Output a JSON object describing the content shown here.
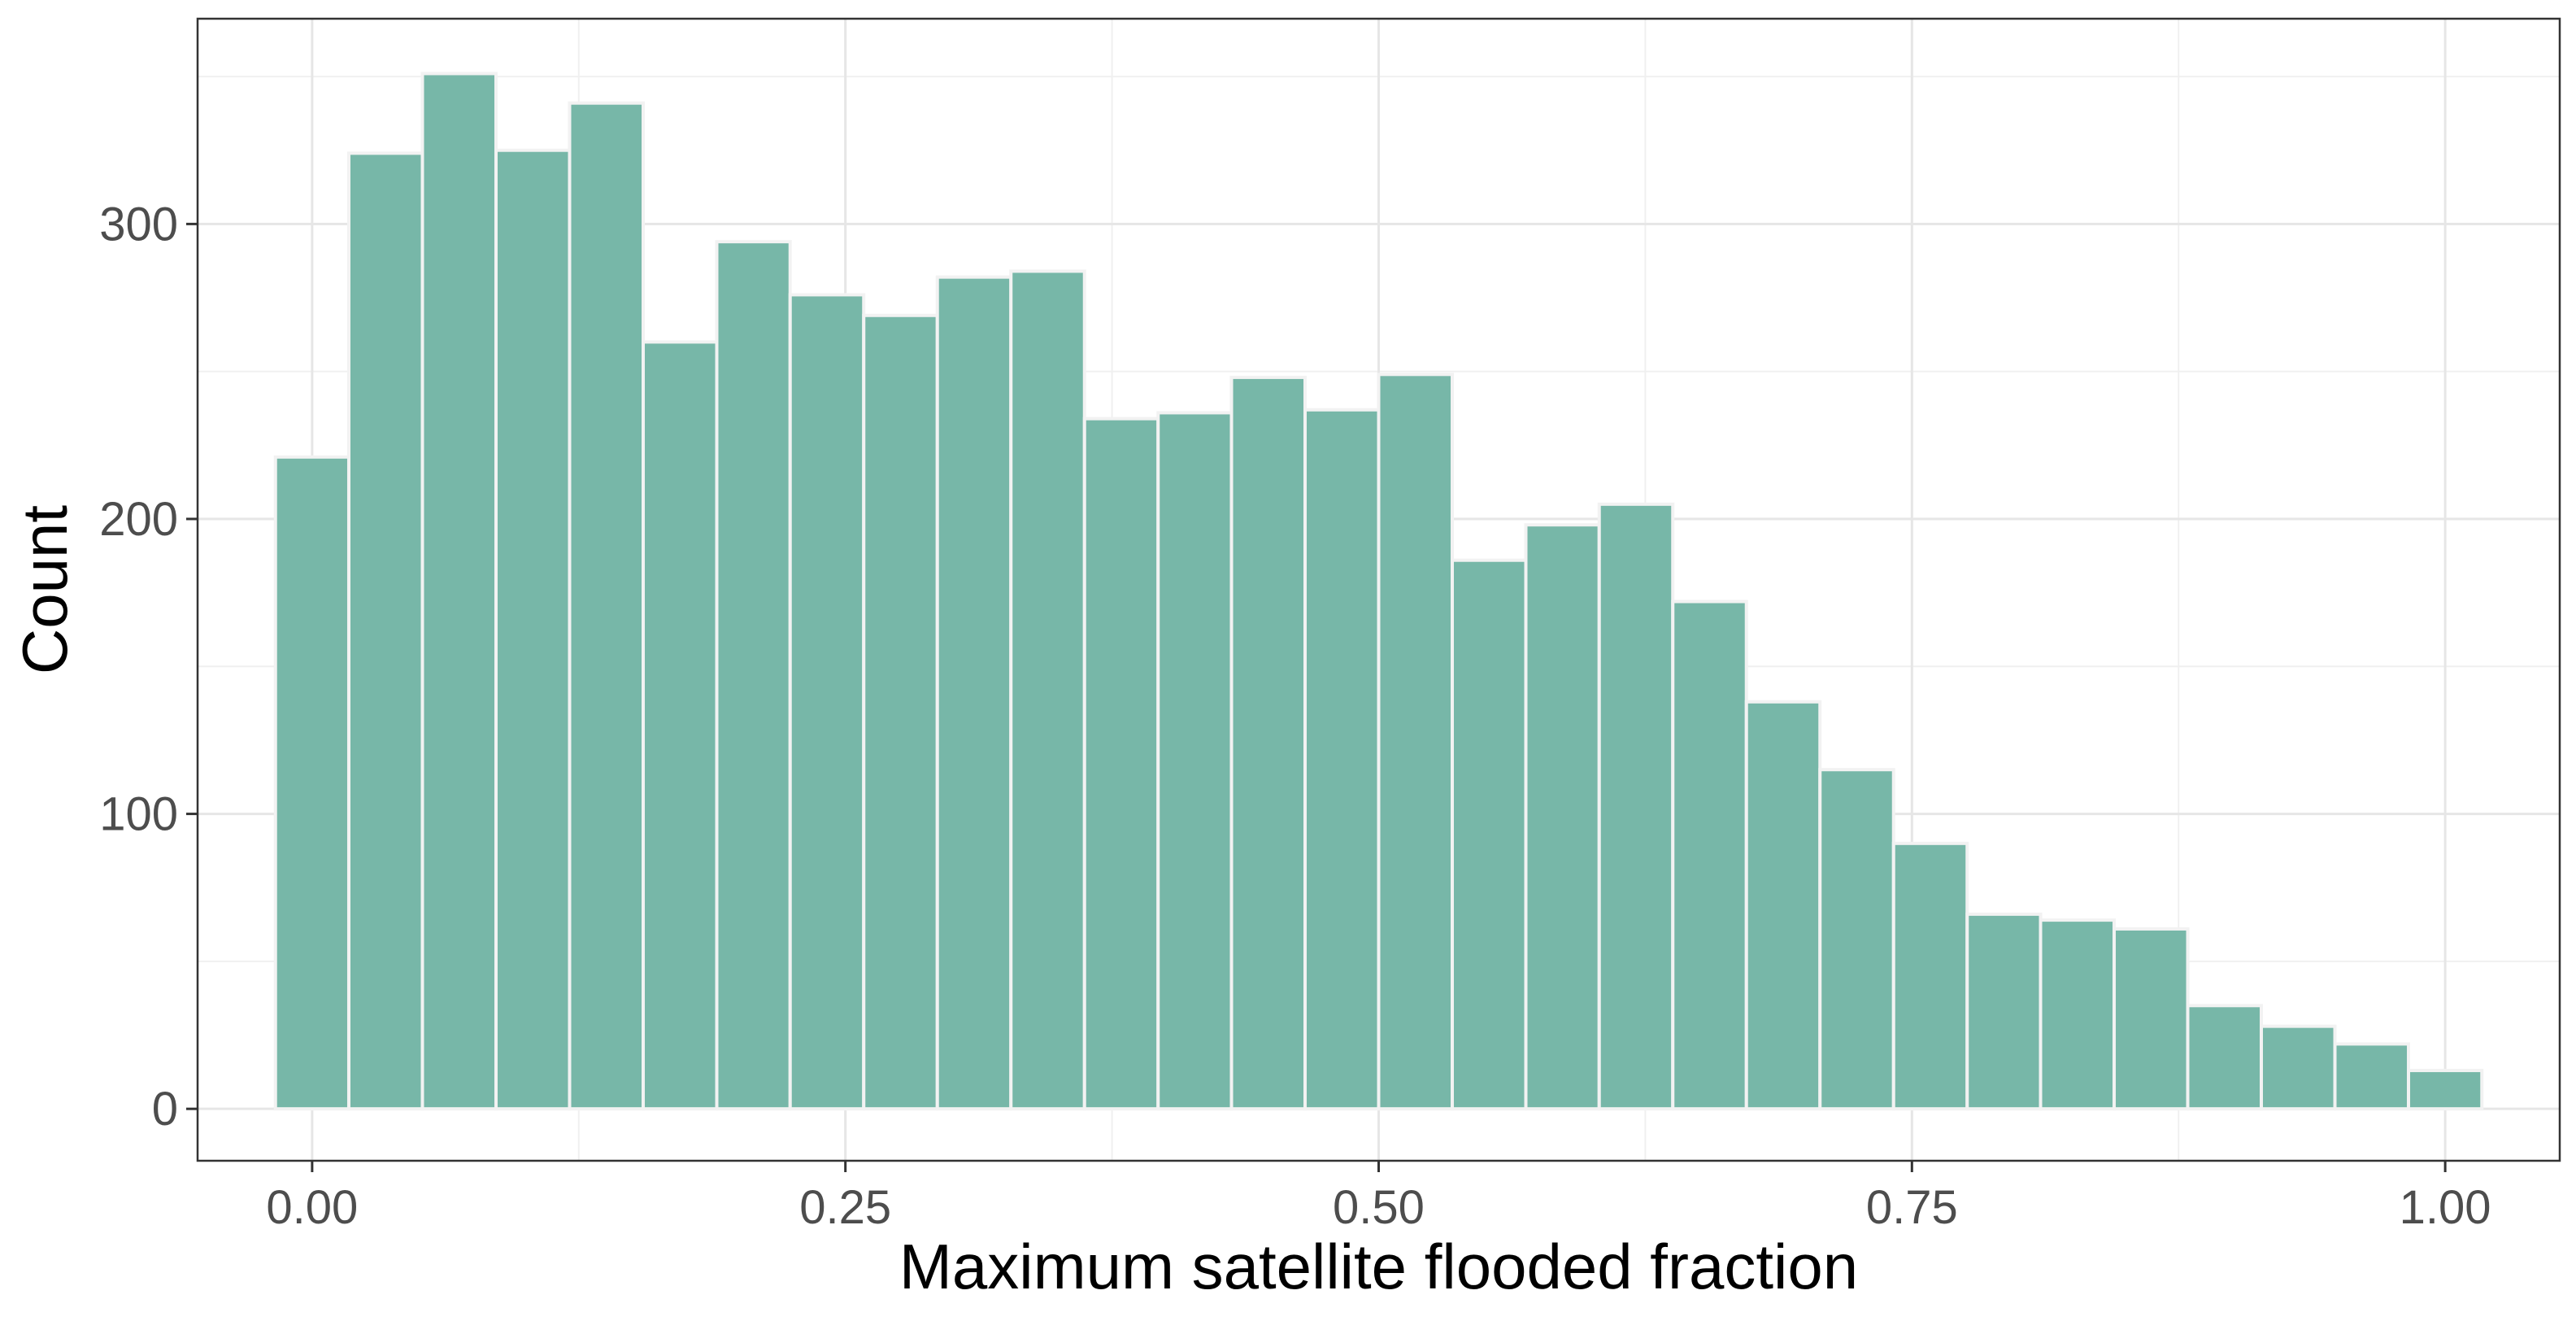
{
  "chart_data": {
    "type": "bar",
    "subtype": "histogram",
    "title": "",
    "xlabel": "Maximum satellite flooded fraction",
    "ylabel": "Count",
    "xlim": [
      -0.0537,
      1.0537
    ],
    "ylim": [
      -17.6,
      369.6
    ],
    "x_ticks": [
      0.0,
      0.25,
      0.5,
      0.75,
      1.0
    ],
    "x_tick_labels": [
      "0.00",
      "0.25",
      "0.50",
      "0.75",
      "1.00"
    ],
    "y_ticks": [
      0,
      100,
      200,
      300
    ],
    "y_tick_labels": [
      "0",
      "100",
      "200",
      "300"
    ],
    "grid": true,
    "legend": "none",
    "bar_fill": "#77b7a8",
    "bar_outline": "#f2f2f2",
    "bins": [
      {
        "x0": -0.0172,
        "x1": 0.0172,
        "count": 221
      },
      {
        "x0": 0.0172,
        "x1": 0.0517,
        "count": 324
      },
      {
        "x0": 0.0517,
        "x1": 0.0862,
        "count": 351
      },
      {
        "x0": 0.0862,
        "x1": 0.1207,
        "count": 325
      },
      {
        "x0": 0.1207,
        "x1": 0.1552,
        "count": 341
      },
      {
        "x0": 0.1552,
        "x1": 0.1897,
        "count": 260
      },
      {
        "x0": 0.1897,
        "x1": 0.2241,
        "count": 294
      },
      {
        "x0": 0.2241,
        "x1": 0.2586,
        "count": 276
      },
      {
        "x0": 0.2586,
        "x1": 0.2931,
        "count": 269
      },
      {
        "x0": 0.2931,
        "x1": 0.3276,
        "count": 282
      },
      {
        "x0": 0.3276,
        "x1": 0.3621,
        "count": 284
      },
      {
        "x0": 0.3621,
        "x1": 0.3966,
        "count": 234
      },
      {
        "x0": 0.3966,
        "x1": 0.431,
        "count": 236
      },
      {
        "x0": 0.431,
        "x1": 0.4655,
        "count": 248
      },
      {
        "x0": 0.4655,
        "x1": 0.5,
        "count": 237
      },
      {
        "x0": 0.5,
        "x1": 0.5345,
        "count": 249
      },
      {
        "x0": 0.5345,
        "x1": 0.569,
        "count": 186
      },
      {
        "x0": 0.569,
        "x1": 0.6034,
        "count": 198
      },
      {
        "x0": 0.6034,
        "x1": 0.6379,
        "count": 205
      },
      {
        "x0": 0.6379,
        "x1": 0.6724,
        "count": 172
      },
      {
        "x0": 0.6724,
        "x1": 0.7069,
        "count": 138
      },
      {
        "x0": 0.7069,
        "x1": 0.7414,
        "count": 115
      },
      {
        "x0": 0.7414,
        "x1": 0.7759,
        "count": 90
      },
      {
        "x0": 0.7759,
        "x1": 0.8103,
        "count": 66
      },
      {
        "x0": 0.8103,
        "x1": 0.8448,
        "count": 64
      },
      {
        "x0": 0.8448,
        "x1": 0.8793,
        "count": 61
      },
      {
        "x0": 0.8793,
        "x1": 0.9138,
        "count": 35
      },
      {
        "x0": 0.9138,
        "x1": 0.9483,
        "count": 28
      },
      {
        "x0": 0.9483,
        "x1": 0.9828,
        "count": 22
      },
      {
        "x0": 0.9828,
        "x1": 1.0172,
        "count": 13
      }
    ]
  }
}
